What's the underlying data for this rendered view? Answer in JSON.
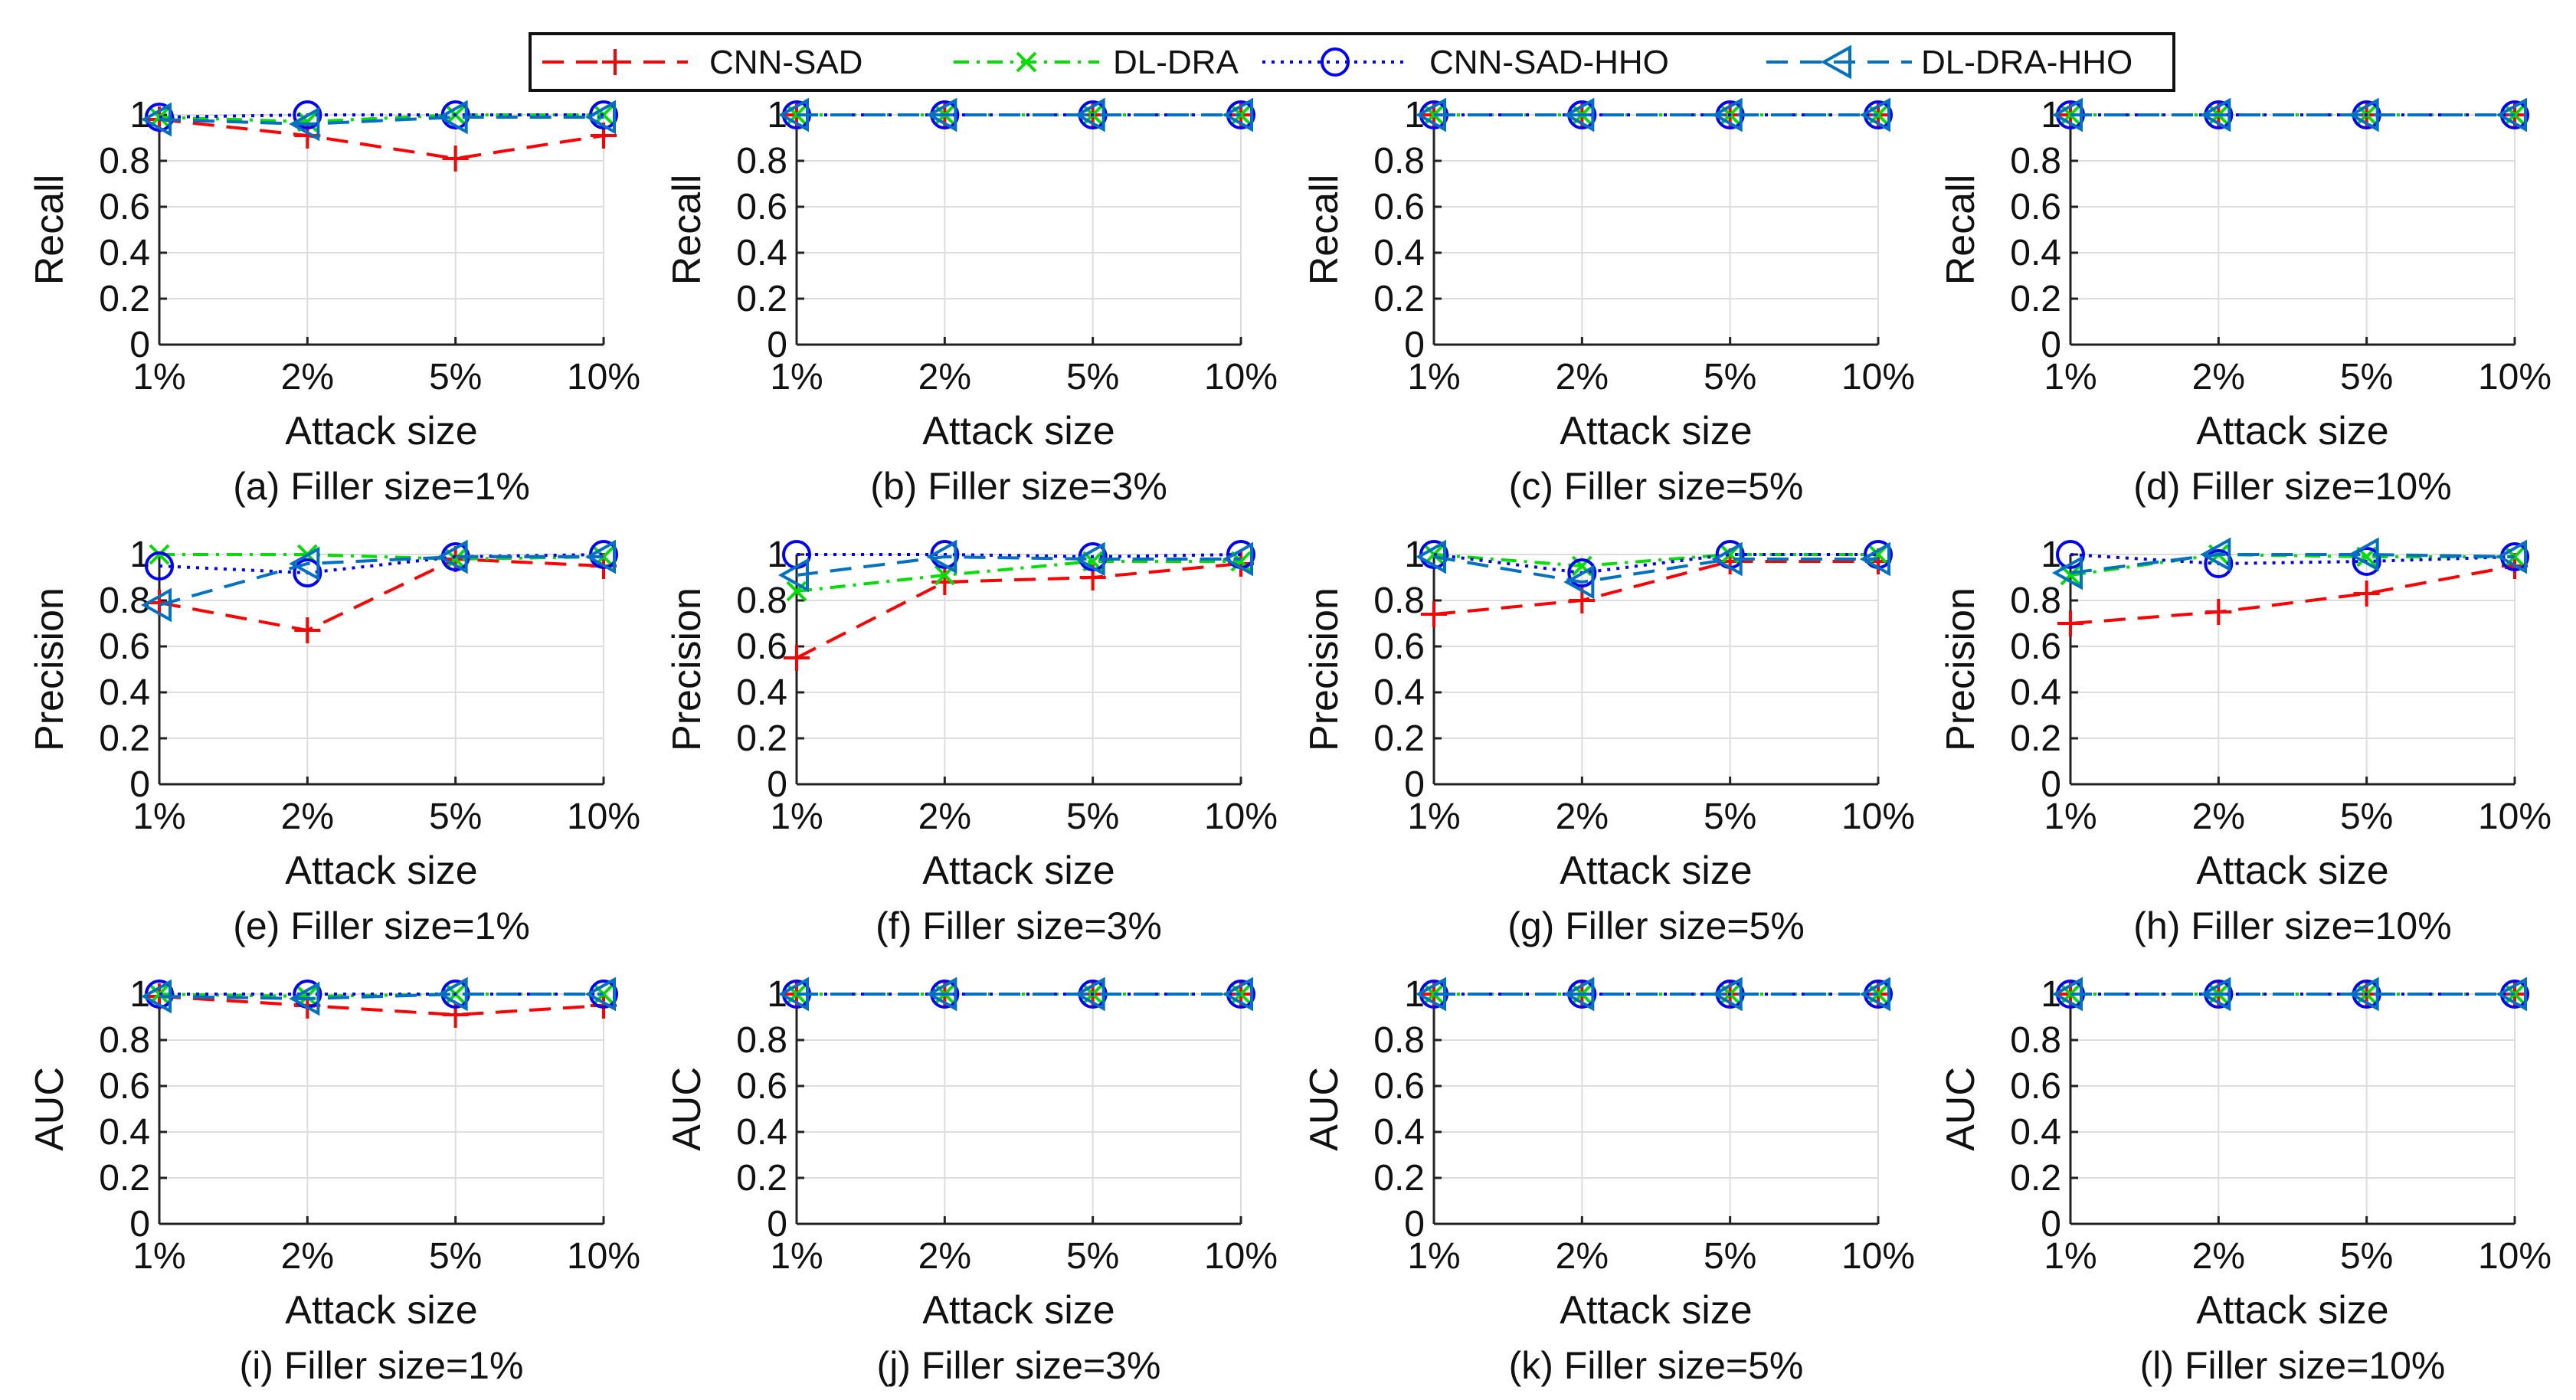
{
  "legend": [
    {
      "name": "CNN-SAD",
      "color": "#ff0000",
      "marker": "plus",
      "dash": "long"
    },
    {
      "name": "DL-DRA",
      "color": "#00dd00",
      "marker": "x",
      "dash": "dashdot"
    },
    {
      "name": "CNN-SAD-HHO",
      "color": "#0000ff",
      "marker": "circle",
      "dash": "dot"
    },
    {
      "name": "DL-DRA-HHO",
      "color": "#0070c0",
      "marker": "triangle-left",
      "dash": "long"
    }
  ],
  "chart_data": [
    {
      "type": "line",
      "caption": "(a) Filler size=1%",
      "xlabel": "Attack size",
      "ylabel": "Recall",
      "categories": [
        "1%",
        "2%",
        "5%",
        "10%"
      ],
      "ylim": [
        0,
        1
      ],
      "yticks": [
        "0",
        "0.2",
        "0.4",
        "0.6",
        "0.8",
        "1"
      ],
      "grid": true,
      "series": [
        {
          "name": "CNN-SAD",
          "values": [
            0.98,
            0.91,
            0.81,
            0.91
          ]
        },
        {
          "name": "DL-DRA",
          "values": [
            0.99,
            0.97,
            1.0,
            1.0
          ]
        },
        {
          "name": "CNN-SAD-HHO",
          "values": [
            0.99,
            1.0,
            1.0,
            1.0
          ]
        },
        {
          "name": "DL-DRA-HHO",
          "values": [
            0.98,
            0.96,
            0.99,
            0.99
          ]
        }
      ]
    },
    {
      "type": "line",
      "caption": "(b) Filler size=3%",
      "xlabel": "Attack size",
      "ylabel": "Recall",
      "categories": [
        "1%",
        "2%",
        "5%",
        "10%"
      ],
      "ylim": [
        0,
        1
      ],
      "yticks": [
        "0",
        "0.2",
        "0.4",
        "0.6",
        "0.8",
        "1"
      ],
      "grid": true,
      "series": [
        {
          "name": "CNN-SAD",
          "values": [
            1.0,
            1.0,
            1.0,
            1.0
          ]
        },
        {
          "name": "DL-DRA",
          "values": [
            1.0,
            1.0,
            1.0,
            1.0
          ]
        },
        {
          "name": "CNN-SAD-HHO",
          "values": [
            1.0,
            1.0,
            1.0,
            1.0
          ]
        },
        {
          "name": "DL-DRA-HHO",
          "values": [
            1.0,
            1.0,
            1.0,
            1.0
          ]
        }
      ]
    },
    {
      "type": "line",
      "caption": "(c) Filler size=5%",
      "xlabel": "Attack size",
      "ylabel": "Recall",
      "categories": [
        "1%",
        "2%",
        "5%",
        "10%"
      ],
      "ylim": [
        0,
        1
      ],
      "yticks": [
        "0",
        "0.2",
        "0.4",
        "0.6",
        "0.8",
        "1"
      ],
      "grid": true,
      "series": [
        {
          "name": "CNN-SAD",
          "values": [
            1.0,
            1.0,
            1.0,
            1.0
          ]
        },
        {
          "name": "DL-DRA",
          "values": [
            1.0,
            1.0,
            1.0,
            1.0
          ]
        },
        {
          "name": "CNN-SAD-HHO",
          "values": [
            1.0,
            1.0,
            1.0,
            1.0
          ]
        },
        {
          "name": "DL-DRA-HHO",
          "values": [
            1.0,
            1.0,
            1.0,
            1.0
          ]
        }
      ]
    },
    {
      "type": "line",
      "caption": "(d) Filler size=10%",
      "xlabel": "Attack size",
      "ylabel": "Recall",
      "categories": [
        "1%",
        "2%",
        "5%",
        "10%"
      ],
      "ylim": [
        0,
        1
      ],
      "yticks": [
        "0",
        "0.2",
        "0.4",
        "0.6",
        "0.8",
        "1"
      ],
      "grid": true,
      "series": [
        {
          "name": "CNN-SAD",
          "values": [
            1.0,
            1.0,
            1.0,
            1.0
          ]
        },
        {
          "name": "DL-DRA",
          "values": [
            1.0,
            1.0,
            1.0,
            1.0
          ]
        },
        {
          "name": "CNN-SAD-HHO",
          "values": [
            1.0,
            1.0,
            1.0,
            1.0
          ]
        },
        {
          "name": "DL-DRA-HHO",
          "values": [
            1.0,
            1.0,
            1.0,
            1.0
          ]
        }
      ]
    },
    {
      "type": "line",
      "caption": "(e) Filler size=1%",
      "xlabel": "Attack size",
      "ylabel": "Precision",
      "categories": [
        "1%",
        "2%",
        "5%",
        "10%"
      ],
      "ylim": [
        0,
        1
      ],
      "yticks": [
        "0",
        "0.2",
        "0.4",
        "0.6",
        "0.8",
        "1"
      ],
      "grid": true,
      "series": [
        {
          "name": "CNN-SAD",
          "values": [
            0.79,
            0.67,
            0.98,
            0.95
          ]
        },
        {
          "name": "DL-DRA",
          "values": [
            1.0,
            1.0,
            0.98,
            0.99
          ]
        },
        {
          "name": "CNN-SAD-HHO",
          "values": [
            0.95,
            0.92,
            0.99,
            1.0
          ]
        },
        {
          "name": "DL-DRA-HHO",
          "values": [
            0.78,
            0.96,
            0.99,
            0.99
          ]
        }
      ]
    },
    {
      "type": "line",
      "caption": "(f) Filler size=3%",
      "xlabel": "Attack size",
      "ylabel": "Precision",
      "categories": [
        "1%",
        "2%",
        "5%",
        "10%"
      ],
      "ylim": [
        0,
        1
      ],
      "yticks": [
        "0",
        "0.2",
        "0.4",
        "0.6",
        "0.8",
        "1"
      ],
      "grid": true,
      "series": [
        {
          "name": "CNN-SAD",
          "values": [
            0.55,
            0.88,
            0.9,
            0.96
          ]
        },
        {
          "name": "DL-DRA",
          "values": [
            0.84,
            0.91,
            0.97,
            0.97
          ]
        },
        {
          "name": "CNN-SAD-HHO",
          "values": [
            1.0,
            1.0,
            0.99,
            1.0
          ]
        },
        {
          "name": "DL-DRA-HHO",
          "values": [
            0.91,
            0.99,
            0.98,
            0.98
          ]
        }
      ]
    },
    {
      "type": "line",
      "caption": "(g) Filler size=5%",
      "xlabel": "Attack size",
      "ylabel": "Precision",
      "categories": [
        "1%",
        "2%",
        "5%",
        "10%"
      ],
      "ylim": [
        0,
        1
      ],
      "yticks": [
        "0",
        "0.2",
        "0.4",
        "0.6",
        "0.8",
        "1"
      ],
      "grid": true,
      "series": [
        {
          "name": "CNN-SAD",
          "values": [
            0.74,
            0.8,
            0.97,
            0.97
          ]
        },
        {
          "name": "DL-DRA",
          "values": [
            1.0,
            0.95,
            1.0,
            1.0
          ]
        },
        {
          "name": "CNN-SAD-HHO",
          "values": [
            1.0,
            0.92,
            1.0,
            1.0
          ]
        },
        {
          "name": "DL-DRA-HHO",
          "values": [
            0.99,
            0.88,
            0.98,
            0.98
          ]
        }
      ]
    },
    {
      "type": "line",
      "caption": "(h) Filler size=10%",
      "xlabel": "Attack size",
      "ylabel": "Precision",
      "categories": [
        "1%",
        "2%",
        "5%",
        "10%"
      ],
      "ylim": [
        0,
        1
      ],
      "yticks": [
        "0",
        "0.2",
        "0.4",
        "0.6",
        "0.8",
        "1"
      ],
      "grid": true,
      "series": [
        {
          "name": "CNN-SAD",
          "values": [
            0.7,
            0.75,
            0.83,
            0.95
          ]
        },
        {
          "name": "DL-DRA",
          "values": [
            0.91,
            1.0,
            0.99,
            0.99
          ]
        },
        {
          "name": "CNN-SAD-HHO",
          "values": [
            1.0,
            0.96,
            0.97,
            0.99
          ]
        },
        {
          "name": "DL-DRA-HHO",
          "values": [
            0.92,
            1.0,
            1.0,
            0.99
          ]
        }
      ]
    },
    {
      "type": "line",
      "caption": "(i) Filler size=1%",
      "xlabel": "Attack size",
      "ylabel": "AUC",
      "categories": [
        "1%",
        "2%",
        "5%",
        "10%"
      ],
      "ylim": [
        0,
        1
      ],
      "yticks": [
        "0",
        "0.2",
        "0.4",
        "0.6",
        "0.8",
        "1"
      ],
      "grid": true,
      "series": [
        {
          "name": "CNN-SAD",
          "values": [
            0.99,
            0.95,
            0.91,
            0.95
          ]
        },
        {
          "name": "DL-DRA",
          "values": [
            1.0,
            0.99,
            1.0,
            1.0
          ]
        },
        {
          "name": "CNN-SAD-HHO",
          "values": [
            1.0,
            1.0,
            1.0,
            1.0
          ]
        },
        {
          "name": "DL-DRA-HHO",
          "values": [
            0.99,
            0.98,
            1.0,
            1.0
          ]
        }
      ]
    },
    {
      "type": "line",
      "caption": "(j) Filler size=3%",
      "xlabel": "Attack size",
      "ylabel": "AUC",
      "categories": [
        "1%",
        "2%",
        "5%",
        "10%"
      ],
      "ylim": [
        0,
        1
      ],
      "yticks": [
        "0",
        "0.2",
        "0.4",
        "0.6",
        "0.8",
        "1"
      ],
      "grid": true,
      "series": [
        {
          "name": "CNN-SAD",
          "values": [
            1.0,
            1.0,
            1.0,
            1.0
          ]
        },
        {
          "name": "DL-DRA",
          "values": [
            1.0,
            1.0,
            1.0,
            1.0
          ]
        },
        {
          "name": "CNN-SAD-HHO",
          "values": [
            1.0,
            1.0,
            1.0,
            1.0
          ]
        },
        {
          "name": "DL-DRA-HHO",
          "values": [
            1.0,
            1.0,
            1.0,
            1.0
          ]
        }
      ]
    },
    {
      "type": "line",
      "caption": "(k) Filler size=5%",
      "xlabel": "Attack size",
      "ylabel": "AUC",
      "categories": [
        "1%",
        "2%",
        "5%",
        "10%"
      ],
      "ylim": [
        0,
        1
      ],
      "yticks": [
        "0",
        "0.2",
        "0.4",
        "0.6",
        "0.8",
        "1"
      ],
      "grid": true,
      "series": [
        {
          "name": "CNN-SAD",
          "values": [
            1.0,
            1.0,
            1.0,
            1.0
          ]
        },
        {
          "name": "DL-DRA",
          "values": [
            1.0,
            1.0,
            1.0,
            1.0
          ]
        },
        {
          "name": "CNN-SAD-HHO",
          "values": [
            1.0,
            1.0,
            1.0,
            1.0
          ]
        },
        {
          "name": "DL-DRA-HHO",
          "values": [
            1.0,
            1.0,
            1.0,
            1.0
          ]
        }
      ]
    },
    {
      "type": "line",
      "caption": "(l) Filler size=10%",
      "xlabel": "Attack size",
      "ylabel": "AUC",
      "categories": [
        "1%",
        "2%",
        "5%",
        "10%"
      ],
      "ylim": [
        0,
        1
      ],
      "yticks": [
        "0",
        "0.2",
        "0.4",
        "0.6",
        "0.8",
        "1"
      ],
      "grid": true,
      "series": [
        {
          "name": "CNN-SAD",
          "values": [
            1.0,
            1.0,
            1.0,
            1.0
          ]
        },
        {
          "name": "DL-DRA",
          "values": [
            1.0,
            1.0,
            1.0,
            1.0
          ]
        },
        {
          "name": "CNN-SAD-HHO",
          "values": [
            1.0,
            1.0,
            1.0,
            1.0
          ]
        },
        {
          "name": "DL-DRA-HHO",
          "values": [
            1.0,
            1.0,
            1.0,
            1.0
          ]
        }
      ]
    }
  ]
}
